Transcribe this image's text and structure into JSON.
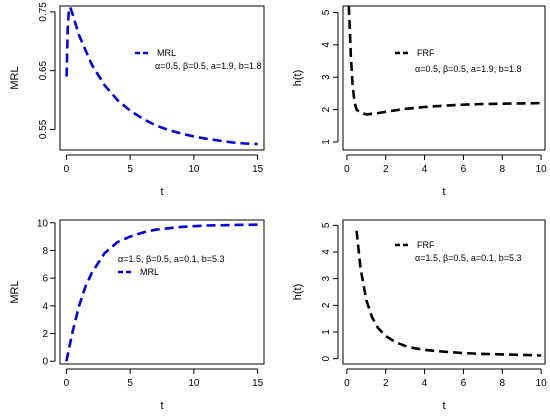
{
  "chart_data": [
    {
      "type": "line",
      "xlabel": "t",
      "ylabel": "MRL",
      "xlim": [
        -0.5,
        15.5
      ],
      "ylim": [
        0.515,
        0.76
      ],
      "xticks": [
        0,
        5,
        10,
        15
      ],
      "yticks": [
        0.55,
        0.65,
        0.75
      ],
      "ytick_rotated": true,
      "legend": {
        "position": "top-right",
        "line_sample": true,
        "lines": [
          "MRL",
          "α=0.5, β=0.5, a=1.9, b=1.8"
        ]
      },
      "series": [
        {
          "name": "MRL",
          "color": "#0000ee",
          "dash": true,
          "x": [
            0.02,
            0.1,
            0.2,
            0.3,
            0.5,
            1,
            1.5,
            2,
            3,
            4,
            5,
            6,
            7,
            8,
            9,
            10,
            11,
            12,
            13,
            14,
            15
          ],
          "y": [
            0.64,
            0.72,
            0.755,
            0.758,
            0.745,
            0.71,
            0.685,
            0.66,
            0.625,
            0.6,
            0.582,
            0.568,
            0.557,
            0.549,
            0.543,
            0.538,
            0.534,
            0.531,
            0.528,
            0.526,
            0.525
          ]
        }
      ]
    },
    {
      "type": "line",
      "xlabel": "t",
      "ylabel": "h(t)",
      "xlim": [
        -0.2,
        10.2
      ],
      "ylim": [
        0.75,
        5.2
      ],
      "xticks": [
        0,
        2,
        4,
        6,
        8,
        10
      ],
      "yticks": [
        1,
        2,
        3,
        4,
        5
      ],
      "ytick_rotated": true,
      "legend": {
        "position": "top-right",
        "line_sample": true,
        "lines": [
          "FRF",
          "α=0.5, β=0.5, a=1.9, b=1.8"
        ]
      },
      "series": [
        {
          "name": "FRF",
          "color": "#000000",
          "dash": true,
          "x": [
            0.1,
            0.15,
            0.2,
            0.3,
            0.4,
            0.5,
            0.7,
            1,
            1.5,
            2,
            3,
            4,
            5,
            6,
            7,
            8,
            9,
            10
          ],
          "y": [
            5.2,
            4.5,
            3.7,
            2.7,
            2.2,
            2.0,
            1.9,
            1.85,
            1.88,
            1.93,
            2.02,
            2.08,
            2.12,
            2.15,
            2.17,
            2.18,
            2.19,
            2.2
          ]
        }
      ]
    },
    {
      "type": "line",
      "xlabel": "t",
      "ylabel": "MRL",
      "xlim": [
        -0.5,
        15.5
      ],
      "ylim": [
        -0.2,
        10.2
      ],
      "xticks": [
        0,
        5,
        10,
        15
      ],
      "yticks": [
        0,
        2,
        4,
        6,
        8,
        10
      ],
      "ytick_rotated": false,
      "legend": {
        "position": "right-center",
        "line_sample": true,
        "lines": [
          "α=1.5, β=0.5, a=0.1, b=5.3",
          "MRL"
        ]
      },
      "series": [
        {
          "name": "MRL",
          "color": "#0000ee",
          "dash": true,
          "x": [
            0,
            0.5,
            1,
            1.5,
            2,
            3,
            4,
            5,
            6,
            7,
            8,
            9,
            10,
            11,
            12,
            13,
            14,
            15
          ],
          "y": [
            0,
            2.2,
            4.0,
            5.4,
            6.4,
            7.8,
            8.6,
            9.0,
            9.3,
            9.5,
            9.6,
            9.7,
            9.75,
            9.8,
            9.82,
            9.84,
            9.85,
            9.86
          ]
        }
      ]
    },
    {
      "type": "line",
      "xlabel": "t",
      "ylabel": "h(t)",
      "xlim": [
        -0.2,
        10.2
      ],
      "ylim": [
        -0.2,
        5.2
      ],
      "xticks": [
        0,
        2,
        4,
        6,
        8,
        10
      ],
      "yticks": [
        0,
        1,
        2,
        3,
        4,
        5
      ],
      "ytick_rotated": true,
      "legend": {
        "position": "top-right",
        "line_sample": true,
        "lines": [
          "FRF",
          "α=1.5, β=0.5, a=0.1, b=5.3"
        ]
      },
      "series": [
        {
          "name": "FRF",
          "color": "#000000",
          "dash": true,
          "x": [
            0.5,
            0.7,
            1,
            1.3,
            1.6,
            2,
            2.5,
            3,
            3.5,
            4,
            5,
            6,
            7,
            8,
            9,
            10
          ],
          "y": [
            4.8,
            3.4,
            2.2,
            1.55,
            1.15,
            0.85,
            0.62,
            0.48,
            0.39,
            0.33,
            0.26,
            0.21,
            0.18,
            0.16,
            0.14,
            0.12
          ]
        }
      ]
    }
  ]
}
